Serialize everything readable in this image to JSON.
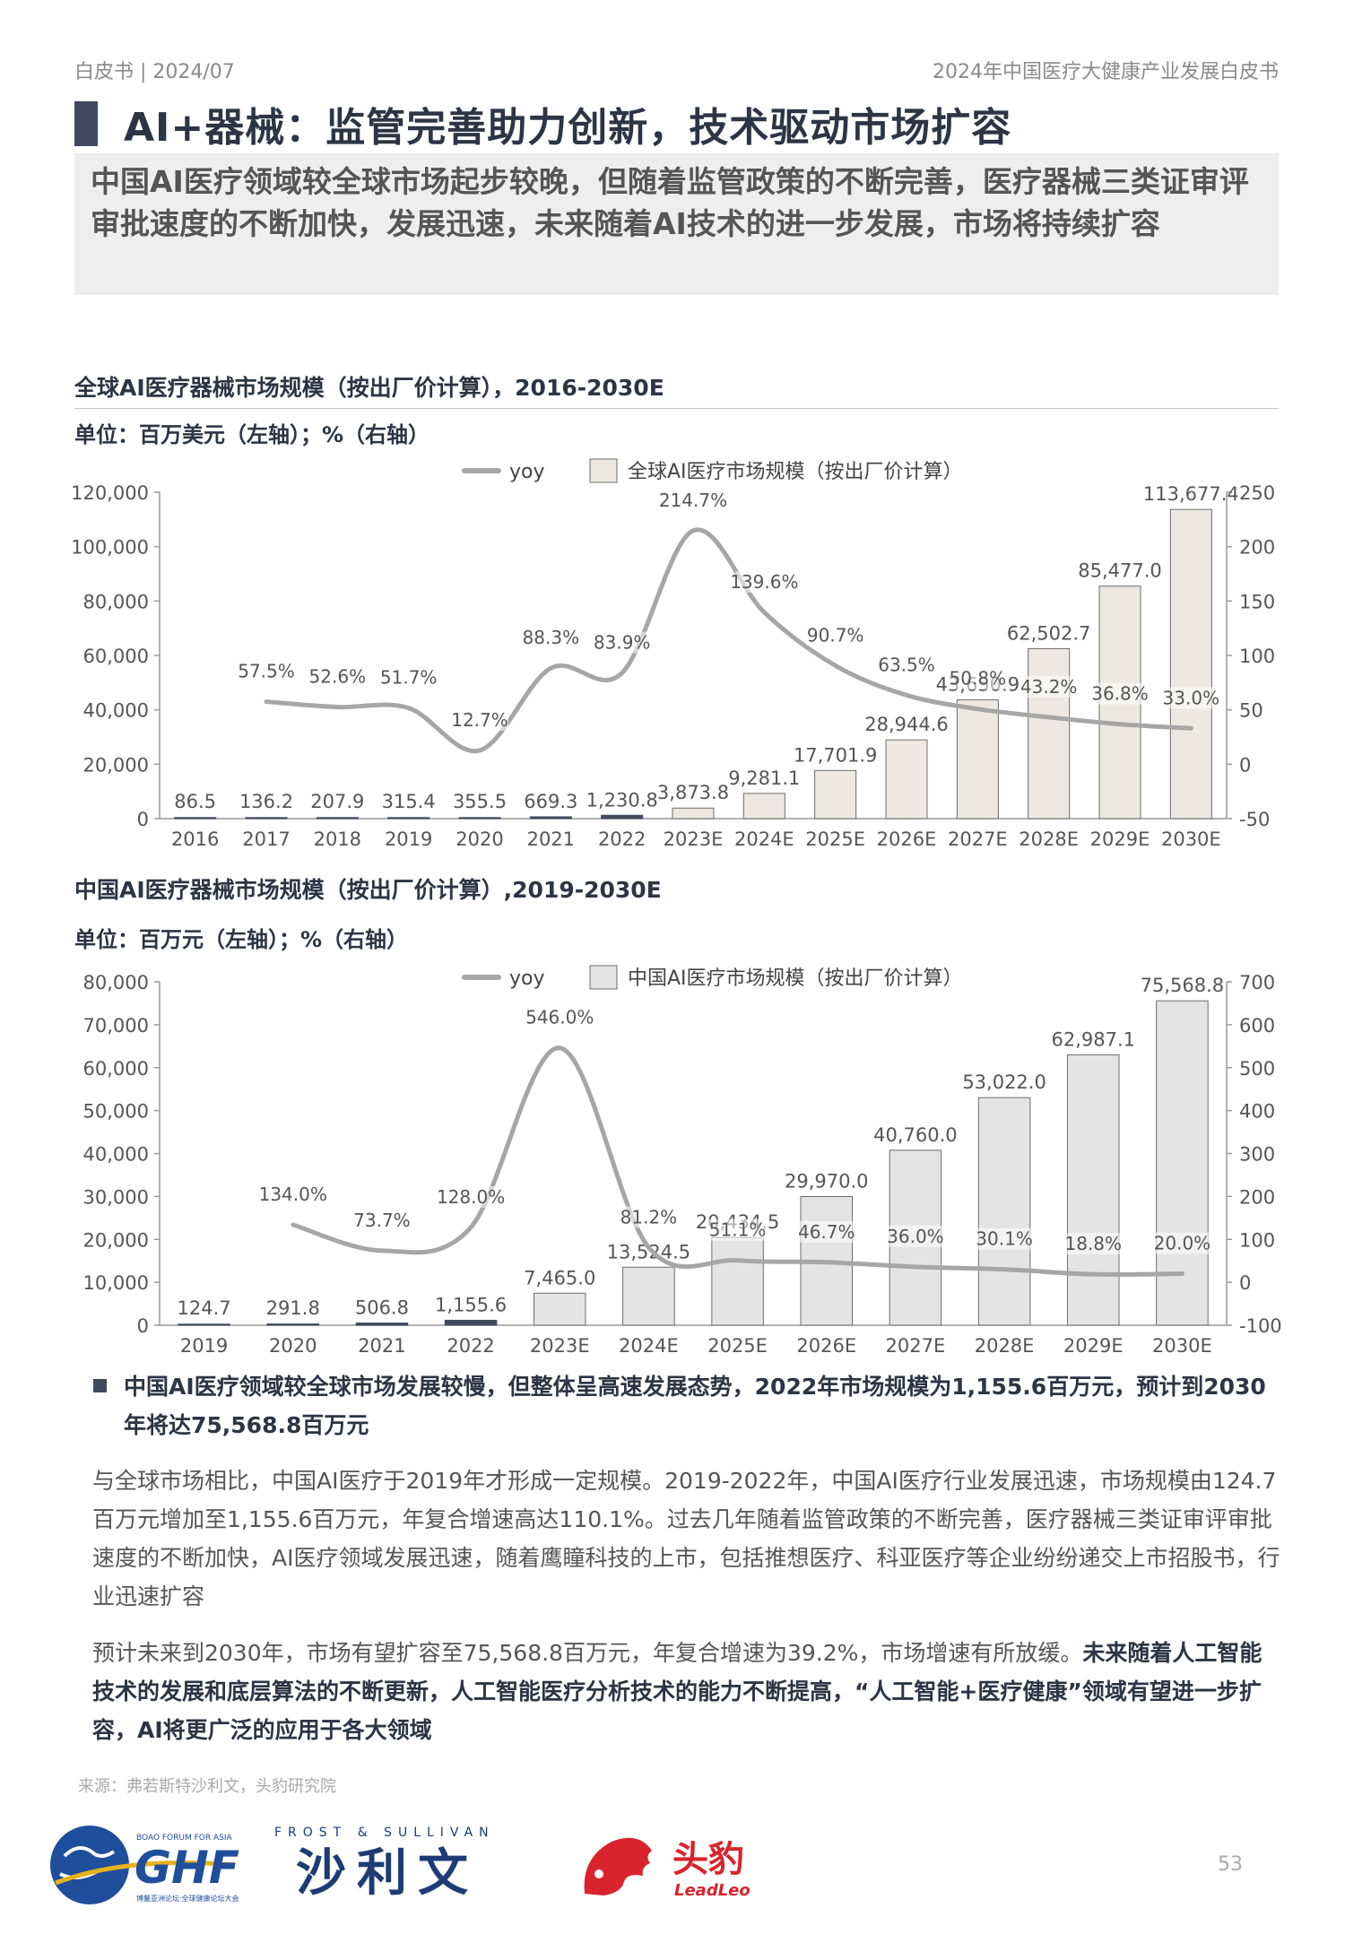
{
  "header": {
    "left": "白皮书 | 2024/07",
    "right": "2024年中国医疗大健康产业发展白皮书"
  },
  "title": "AI+器械：监管完善助力创新，技术驱动市场扩容",
  "subtitle": "中国AI医疗领域较全球市场起步较晚，但随着监管政策的不断完善，医疗器械三类证审评审批速度的不断加快，发展迅速，未来随着AI技术的进一步发展，市场将持续扩容",
  "chart1": {
    "heading": "全球AI医疗器械市场规模（按出厂价计算），2016-2030E",
    "unit": "单位：百万美元（左轴）；%（右轴）"
  },
  "chart2": {
    "heading": "中国AI医疗器械市场规模（按出厂价计算）,2019-2030E",
    "unit": "单位：百万元（左轴）；%（右轴）"
  },
  "chart_data": [
    {
      "type": "bar",
      "legend": [
        "yoy",
        "全球AI医疗市场规模（按出厂价计算）"
      ],
      "categories": [
        "2016",
        "2017",
        "2018",
        "2019",
        "2020",
        "2021",
        "2022",
        "2023E",
        "2024E",
        "2025E",
        "2026E",
        "2027E",
        "2028E",
        "2029E",
        "2030E"
      ],
      "bar_labels": [
        "86.5",
        "136.2",
        "207.9",
        "315.4",
        "355.5",
        "669.3",
        "1,230.8",
        "3,873.8",
        "9,281.1",
        "17,701.9",
        "28,944.6",
        "43,650.9",
        "62,502.7",
        "85,477.0",
        "113,677.4"
      ],
      "series": [
        {
          "name": "全球AI医疗市场规模（按出厂价计算）",
          "axis": "left",
          "values": [
            86.5,
            136.2,
            207.9,
            315.4,
            355.5,
            669.3,
            1230.8,
            3873.8,
            9281.1,
            17701.9,
            28944.6,
            43650.9,
            62502.7,
            85477.0,
            113677.4
          ]
        },
        {
          "name": "yoy",
          "axis": "right",
          "values": [
            null,
            57.5,
            52.6,
            51.7,
            12.7,
            88.3,
            83.9,
            214.7,
            139.6,
            90.7,
            63.5,
            50.8,
            43.2,
            36.8,
            33.0
          ],
          "labels": [
            "",
            "57.5%",
            "52.6%",
            "51.7%",
            "12.7%",
            "88.3%",
            "83.9%",
            "214.7%",
            "139.6%",
            "90.7%",
            "63.5%",
            "50.8%",
            "43.2%",
            "36.8%",
            "33.0%"
          ]
        }
      ],
      "ylim_left": [
        0,
        120000
      ],
      "yticks_left": [
        "0",
        "20,000",
        "40,000",
        "60,000",
        "80,000",
        "100,000",
        "120,000"
      ],
      "ylim_right": [
        -50,
        250
      ],
      "yticks_right": [
        "-50",
        "0",
        "50",
        "100",
        "150",
        "200",
        "250"
      ],
      "colors": {
        "bar": "#ede8e1",
        "bar_stroke": "#6d6d6d",
        "bar_dark": "#3f4a5e",
        "line": "#a6a6a6"
      }
    },
    {
      "type": "bar",
      "legend": [
        "yoy",
        "中国AI医疗市场规模（按出厂价计算）"
      ],
      "categories": [
        "2019",
        "2020",
        "2021",
        "2022",
        "2023E",
        "2024E",
        "2025E",
        "2026E",
        "2027E",
        "2028E",
        "2029E",
        "2030E"
      ],
      "bar_labels": [
        "124.7",
        "291.8",
        "506.8",
        "1,155.6",
        "7,465.0",
        "13,524.5",
        "20,434.5",
        "29,970.0",
        "40,760.0",
        "53,022.0",
        "62,987.1",
        "75,568.8"
      ],
      "series": [
        {
          "name": "中国AI医疗市场规模（按出厂价计算）",
          "axis": "left",
          "values": [
            124.7,
            291.8,
            506.8,
            1155.6,
            7465.0,
            13524.5,
            20434.5,
            29970.0,
            40760.0,
            53022.0,
            62987.1,
            75568.8
          ]
        },
        {
          "name": "yoy",
          "axis": "right",
          "values": [
            null,
            134.0,
            73.7,
            128.0,
            546.0,
            81.2,
            51.1,
            46.7,
            36.0,
            30.1,
            18.8,
            20.0
          ],
          "labels": [
            "",
            "134.0%",
            "73.7%",
            "128.0%",
            "546.0%",
            "81.2%",
            "51.1%",
            "46.7%",
            "36.0%",
            "30.1%",
            "18.8%",
            "20.0%"
          ]
        }
      ],
      "ylim_left": [
        0,
        80000
      ],
      "yticks_left": [
        "0",
        "10,000",
        "20,000",
        "30,000",
        "40,000",
        "50,000",
        "60,000",
        "70,000",
        "80,000"
      ],
      "ylim_right": [
        -100,
        700
      ],
      "yticks_right": [
        "-100",
        "0",
        "100",
        "200",
        "300",
        "400",
        "500",
        "600",
        "700"
      ],
      "colors": {
        "bar": "#e4e4e4",
        "bar_stroke": "#6d6d6d",
        "bar_dark": "#3f4a5e",
        "line": "#a6a6a6"
      }
    }
  ],
  "bullet": "中国AI医疗领域较全球市场发展较慢，但整体呈高速发展态势，2022年市场规模为1,155.6百万元，预计到2030年将达75,568.8百万元",
  "para1": "与全球市场相比，中国AI医疗于2019年才形成一定规模。2019-2022年，中国AI医疗行业发展迅速，市场规模由124.7百万元增加至1,155.6百万元，年复合增速高达110.1%。过去几年随着监管政策的不断完善，医疗器械三类证审评审批速度的不断加快，AI医疗领域发展迅速，随着鹰瞳科技的上市，包括推想医疗、科亚医疗等企业纷纷递交上市招股书，行业迅速扩容",
  "para2_normal": "预计未来到2030年，市场有望扩容至75,568.8百万元，年复合增速为39.2%，市场增速有所放缓。",
  "para2_bold": "未来随着人工智能技术的发展和底层算法的不断更新，人工智能医疗分析技术的能力不断提高，“人工智能+医疗健康”领域有望进一步扩容，AI将更广泛的应用于各大领域",
  "source": "来源：弗若斯特沙利文，头豹研究院",
  "page_number": "53",
  "logos": {
    "ghf_top": "BOAO FORUM FOR ASIA",
    "ghf_main": "GHF",
    "ghf_bottom": "博鳌亚洲论坛·全球健康论坛大会",
    "fs_top": "FROST & SULLIVAN",
    "fs_main": "沙利文",
    "ll_main": "头豹",
    "ll_sub": "LeadLeo"
  }
}
